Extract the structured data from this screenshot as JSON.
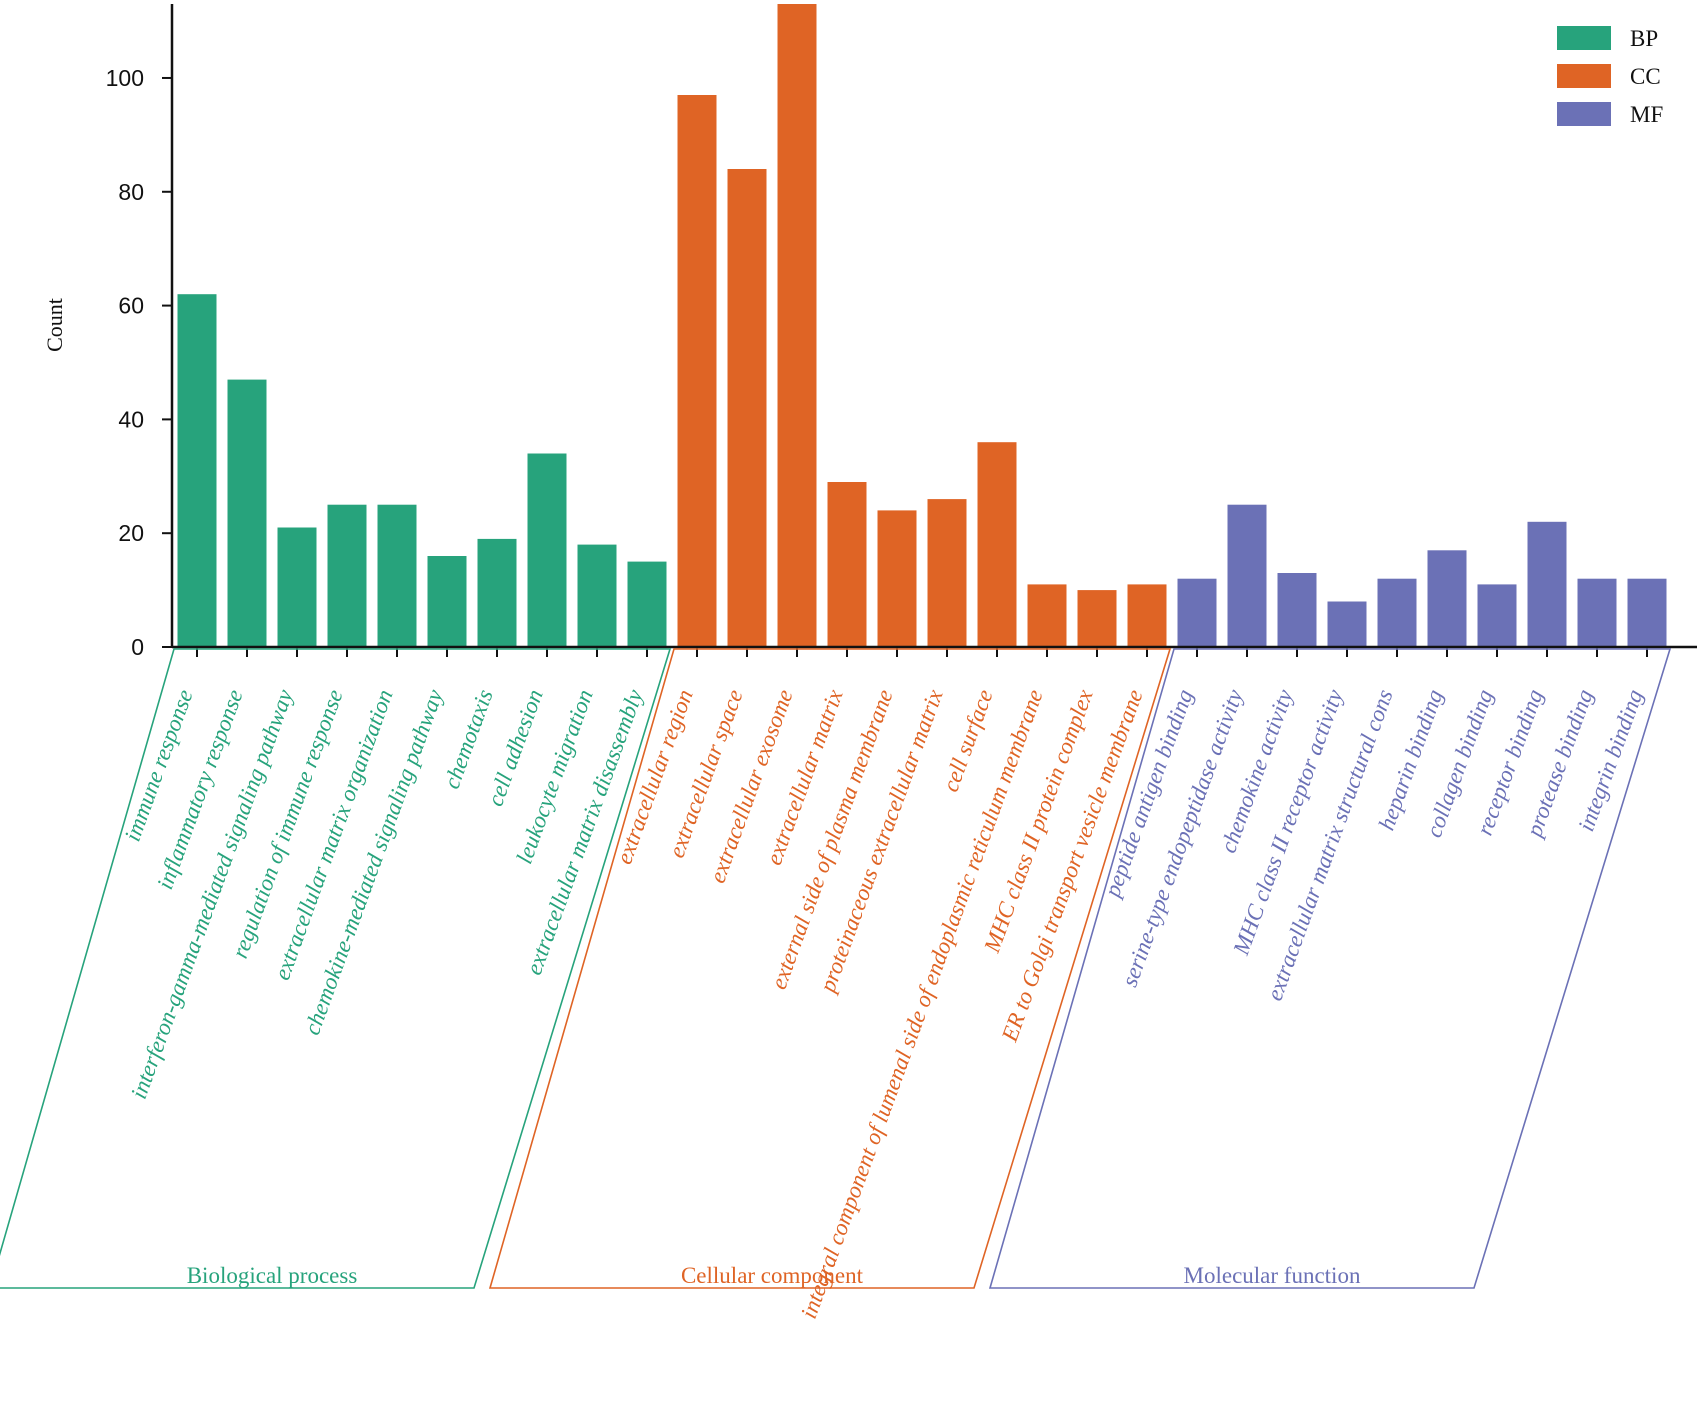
{
  "chart_data": {
    "type": "bar",
    "title": "",
    "xlabel": "",
    "ylabel": "Count",
    "ylim": [
      0,
      113
    ],
    "yticks": [
      0,
      20,
      40,
      60,
      80,
      100
    ],
    "grid": false,
    "legend_position": "top-right",
    "colors": {
      "BP": "#27a37c",
      "CC": "#df6425",
      "MF": "#6b71b6"
    },
    "groups": [
      {
        "key": "BP",
        "name": "Biological process",
        "legend": "BP"
      },
      {
        "key": "CC",
        "name": "Cellular component",
        "legend": "CC"
      },
      {
        "key": "MF",
        "name": "Molecular function",
        "legend": "MF"
      }
    ],
    "categories": [
      {
        "label": "immune response",
        "value": 62,
        "group": "BP"
      },
      {
        "label": "inflammatory response",
        "value": 47,
        "group": "BP"
      },
      {
        "label": "interferon-gamma-mediated signaling pathway",
        "value": 21,
        "group": "BP"
      },
      {
        "label": "regulation of immune response",
        "value": 25,
        "group": "BP"
      },
      {
        "label": "extracellular matrix organization",
        "value": 25,
        "group": "BP"
      },
      {
        "label": "chemokine-mediated signaling pathway",
        "value": 16,
        "group": "BP"
      },
      {
        "label": "chemotaxis",
        "value": 19,
        "group": "BP"
      },
      {
        "label": "cell adhesion",
        "value": 34,
        "group": "BP"
      },
      {
        "label": "leukocyte migration",
        "value": 18,
        "group": "BP"
      },
      {
        "label": "extracellular matrix disassembly",
        "value": 15,
        "group": "BP"
      },
      {
        "label": "extracellular region",
        "value": 97,
        "group": "CC"
      },
      {
        "label": "extracellular space",
        "value": 84,
        "group": "CC"
      },
      {
        "label": "extracellular exosome",
        "value": 113,
        "group": "CC"
      },
      {
        "label": "extracellular matrix",
        "value": 29,
        "group": "CC"
      },
      {
        "label": "external side of plasma membrane",
        "value": 24,
        "group": "CC"
      },
      {
        "label": "proteinaceous extracellular matrix",
        "value": 26,
        "group": "CC"
      },
      {
        "label": "cell surface",
        "value": 36,
        "group": "CC"
      },
      {
        "label": "integral component of lumenal side of endoplasmic reticulum membrane",
        "value": 11,
        "group": "CC"
      },
      {
        "label": "MHC class II protein complex",
        "value": 10,
        "group": "CC"
      },
      {
        "label": "ER to Golgi transport vesicle membrane",
        "value": 11,
        "group": "CC"
      },
      {
        "label": "peptide antigen binding",
        "value": 12,
        "group": "MF"
      },
      {
        "label": "serine-type endopeptidase activity",
        "value": 25,
        "group": "MF"
      },
      {
        "label": "chemokine activity",
        "value": 13,
        "group": "MF"
      },
      {
        "label": "MHC class II receptor activity",
        "value": 8,
        "group": "MF"
      },
      {
        "label": "extracellular matrix structural cons",
        "value": 12,
        "group": "MF"
      },
      {
        "label": "heparin binding",
        "value": 17,
        "group": "MF"
      },
      {
        "label": "collagen binding",
        "value": 11,
        "group": "MF"
      },
      {
        "label": "receptor binding",
        "value": 22,
        "group": "MF"
      },
      {
        "label": "protease binding",
        "value": 12,
        "group": "MF"
      },
      {
        "label": "integrin binding",
        "value": 12,
        "group": "MF"
      }
    ]
  }
}
